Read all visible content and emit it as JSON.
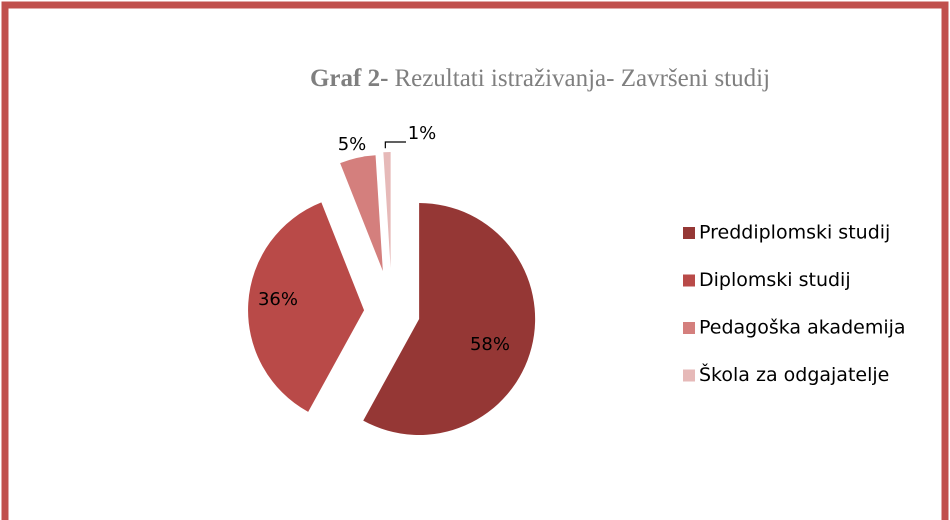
{
  "chart_data": {
    "type": "pie",
    "title": {
      "label": "Graf 2-",
      "text": "Rezultati istraživanja- Završeni studij"
    },
    "categories": [
      "Preddiplomski studij",
      "Diplomski studij",
      "Pedagoška akademija",
      "Škola za odgajatelje"
    ],
    "values": [
      58,
      36,
      5,
      1
    ],
    "value_labels": [
      "58%",
      "36%",
      "5%",
      "1%"
    ],
    "colors": [
      "#953735",
      "#b94a48",
      "#d47f7d",
      "#e6b9b8"
    ],
    "legend": "right"
  }
}
